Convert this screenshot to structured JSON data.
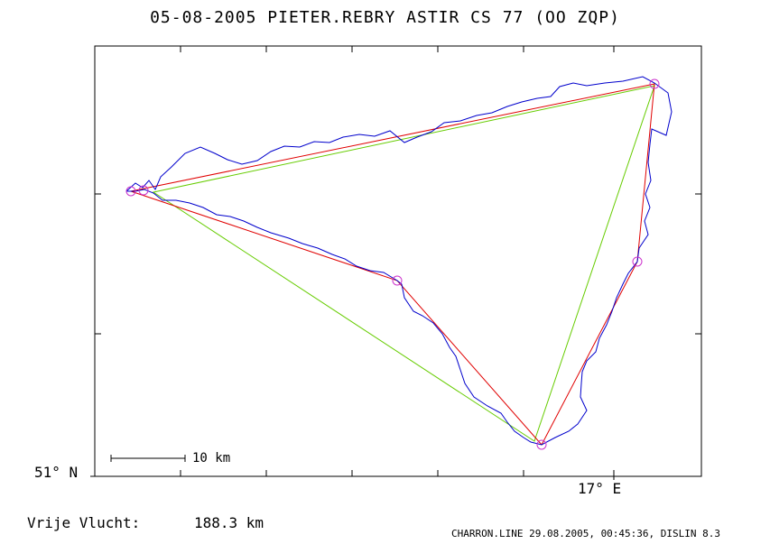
{
  "header": {
    "title": "05-08-2005    PIETER.REBRY    ASTIR CS 77 (OO ZQP)"
  },
  "axes": {
    "lat_label": "51° N",
    "lon_label": "17° E"
  },
  "scale_bar": {
    "label": "10 km"
  },
  "flight": {
    "distance_label": "Vrije Vlucht:",
    "distance_value": "188.3 km"
  },
  "footer": {
    "text": "CHARRON.LINE 29.08.2005, 00:45:36, DISLIN 8.3"
  },
  "colors": {
    "track": "#0000cc",
    "task": "#e00000",
    "triangle": "#66cc00",
    "turnpoint": "#cc33cc",
    "frame": "#000000"
  }
}
